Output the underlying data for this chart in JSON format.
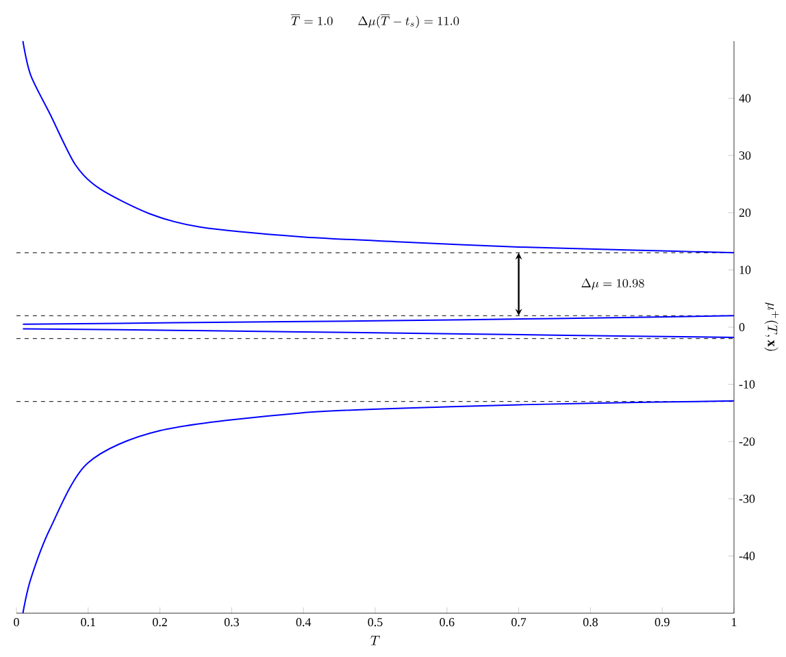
{
  "chart_data": {
    "type": "line",
    "title": "\\overline{T} =1.0 \\qquad \\Delta\\mu(\\overline{T}-t_s) =11.0",
    "xlabel": "T",
    "ylabel": "\\mu^{+}(T,\\mathbf{x})",
    "xlim": [
      0,
      1
    ],
    "ylim": [
      -50,
      50
    ],
    "xticks": [
      0,
      0.1,
      0.2,
      0.3,
      0.4,
      0.5,
      0.6,
      0.7,
      0.8,
      0.9,
      1
    ],
    "yticks": [
      -40,
      -30,
      -20,
      -10,
      0,
      10,
      20,
      30,
      40
    ],
    "marker": "none",
    "line_style": "solid",
    "series": [
      {
        "color": "#0000ff",
        "x": [
          0.009,
          0.02,
          0.047,
          0.082,
          0.116,
          0.186,
          0.256,
          0.396,
          0.535,
          0.7,
          0.85,
          1.0
        ],
        "values": [
          50,
          44,
          37.2,
          28.4,
          24.2,
          19.8,
          17.5,
          15.8,
          14.9,
          14.0,
          13.5,
          13.0
        ]
      },
      {
        "color": "#0000ff",
        "x": [
          0.009,
          0.25,
          0.5,
          0.75,
          1.0
        ],
        "values": [
          0.5,
          0.8,
          1.1,
          1.5,
          2.0
        ]
      },
      {
        "color": "#0000ff",
        "x": [
          0.009,
          0.25,
          0.5,
          0.75,
          1.0
        ],
        "values": [
          -0.3,
          -0.6,
          -1.0,
          -1.4,
          -1.8
        ]
      },
      {
        "color": "#0000ff",
        "x": [
          0.009,
          0.02,
          0.047,
          0.099,
          0.2,
          0.396,
          0.606,
          0.8,
          1.0
        ],
        "values": [
          -50,
          -44,
          -35.2,
          -23.8,
          -18.1,
          -15.0,
          -13.9,
          -13.3,
          -12.9
        ]
      }
    ],
    "ref_lines": [
      {
        "axis": "y",
        "value": 13,
        "color": "#000000",
        "line_style": "dashed"
      },
      {
        "axis": "y",
        "value": 2,
        "color": "#000000",
        "line_style": "dashed"
      },
      {
        "axis": "y",
        "value": -2,
        "color": "#000000",
        "line_style": "dashed"
      },
      {
        "axis": "y",
        "value": -13,
        "color": "#000000",
        "line_style": "dashed"
      }
    ],
    "annotations": [
      "\\Delta\\mu =10.98"
    ]
  }
}
